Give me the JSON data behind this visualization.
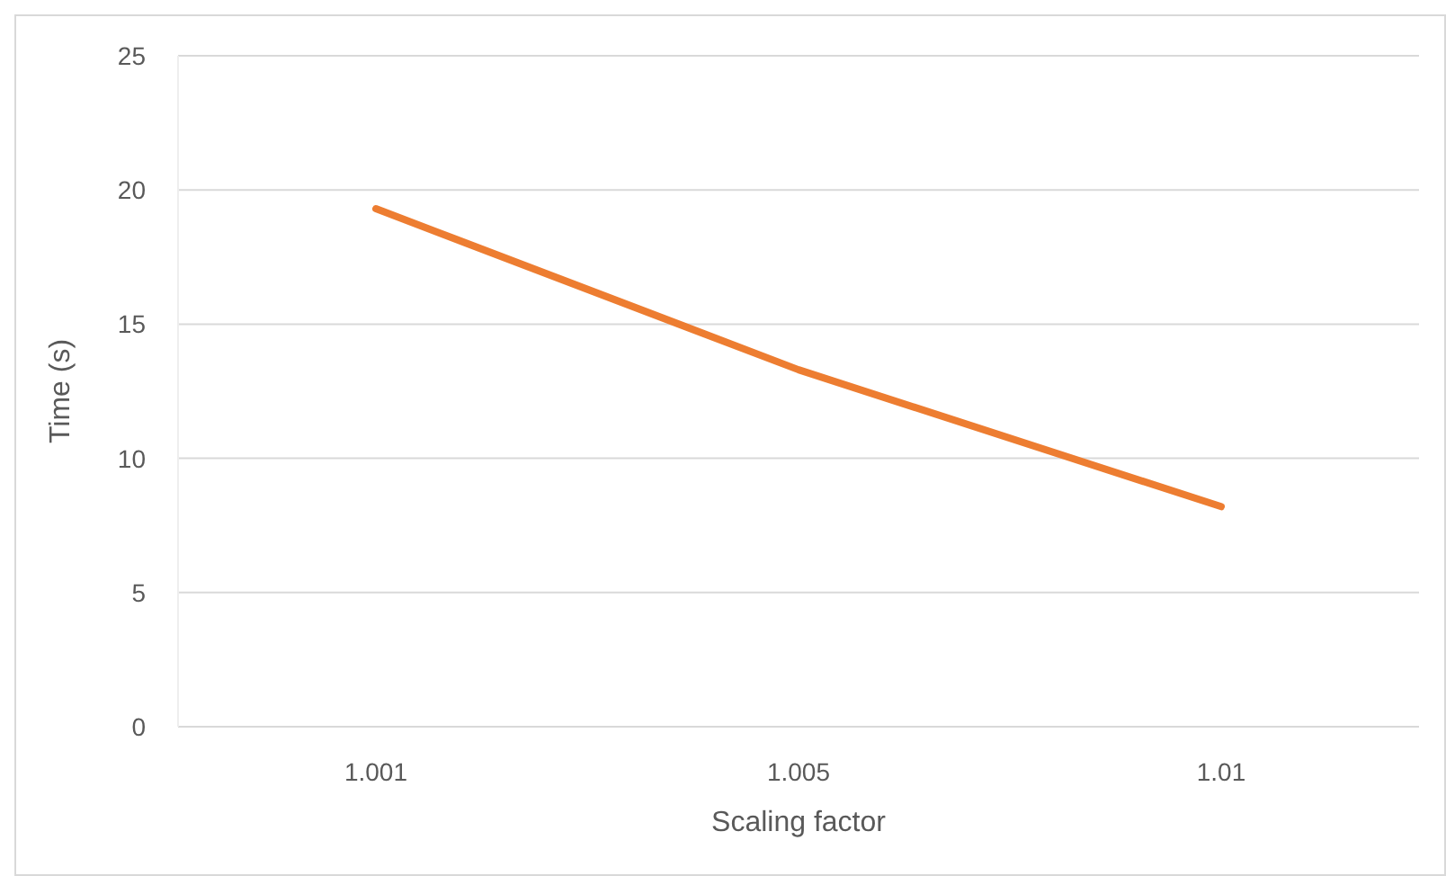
{
  "chart_data": {
    "type": "line",
    "xlabel": "Scaling factor",
    "ylabel": "Time (s)",
    "categories": [
      "1.001",
      "1.005",
      "1.01"
    ],
    "series": [
      {
        "color": "#ed7d31",
        "values": [
          19.3,
          13.3,
          8.2
        ]
      }
    ],
    "ylim": [
      0,
      25
    ],
    "yticks": [
      0,
      5,
      10,
      15,
      20,
      25
    ],
    "grid": "y",
    "marker": "none",
    "line_style": "solid"
  }
}
